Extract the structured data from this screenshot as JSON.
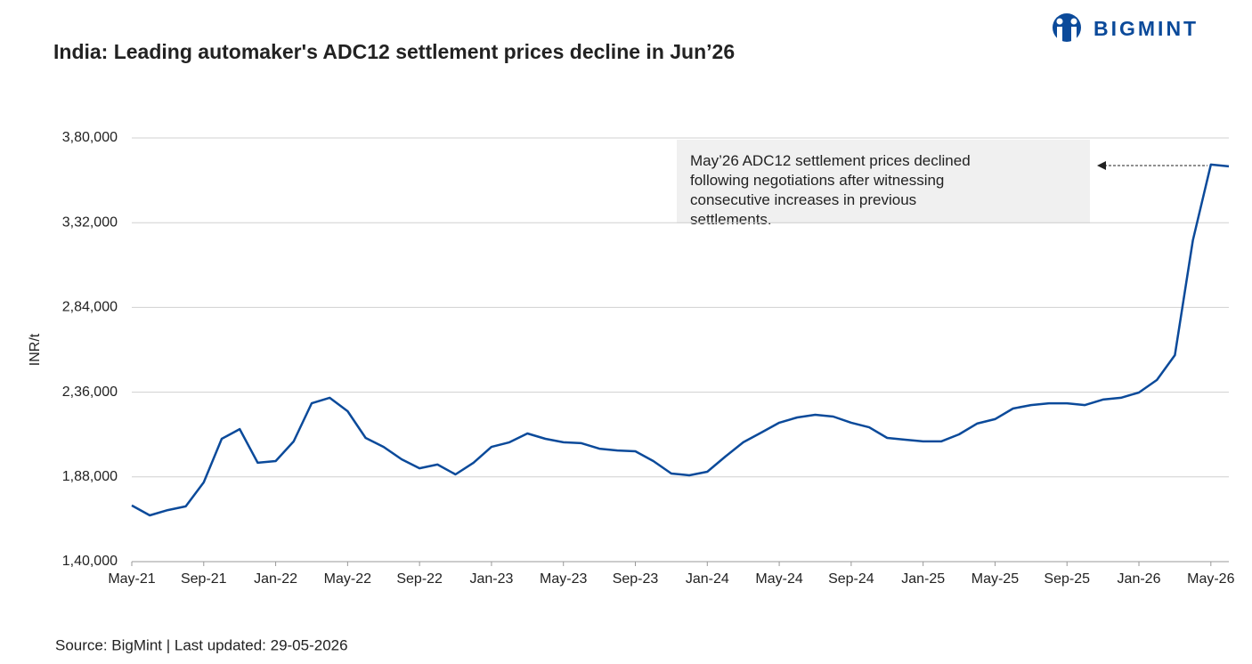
{
  "logo": "BIGMINT",
  "chart_data": {
    "type": "line",
    "title": "India: Leading automaker's ADC12 settlement prices decline in Jun’26",
    "y_label": "INR/t",
    "annotation": "May’26 ADC12 settlement prices declined following negotiations after witnessing consecutive increases in previous settlements.",
    "source": "Source: BigMint | Last updated: 29-05-2026",
    "categories": [
      "May-21",
      null,
      null,
      null,
      "Sep-21",
      null,
      null,
      null,
      "Jan-22",
      null,
      null,
      null,
      "May-22",
      null,
      null,
      null,
      "Sep-22",
      null,
      null,
      null,
      "Jan-23",
      null,
      null,
      null,
      "May-23",
      null,
      null,
      null,
      "Sep-23",
      null,
      null,
      null,
      "Jan-24",
      null,
      null,
      null,
      "May-24",
      null,
      null,
      null,
      "Sep-24",
      null,
      null,
      null,
      "Jan-25",
      null,
      null,
      null,
      "May-25",
      null,
      null,
      null,
      "Sep-25",
      null,
      null,
      null,
      "Jan-26",
      null,
      null,
      null,
      "May-26",
      null
    ],
    "series": [
      {
        "name": "ADC12 settlement price",
        "color": "#0b4a9a",
        "values": [
          171800,
          166200,
          169200,
          171300,
          184900,
          209600,
          215100,
          196000,
          197000,
          208100,
          229700,
          232800,
          225200,
          210100,
          205000,
          198000,
          192900,
          195000,
          189400,
          196000,
          205000,
          207600,
          212600,
          209600,
          207600,
          207100,
          204000,
          203000,
          202500,
          197000,
          189900,
          188900,
          190900,
          199500,
          207600,
          213100,
          218700,
          221700,
          223200,
          222200,
          218700,
          216100,
          210100,
          209100,
          208100,
          208100,
          212100,
          218200,
          220700,
          226700,
          228700,
          229700,
          229700,
          228700,
          231800,
          232800,
          235800,
          242900,
          257000,
          322000,
          364900,
          363900
        ]
      }
    ],
    "ylim": [
      140000,
      380000
    ],
    "yticks": [
      {
        "value": 140000,
        "label": "1,40,000"
      },
      {
        "value": 188000,
        "label": "1,88,000"
      },
      {
        "value": 236000,
        "label": "2,36,000"
      },
      {
        "value": 284000,
        "label": "2,84,000"
      },
      {
        "value": 332000,
        "label": "3,32,000"
      },
      {
        "value": 380000,
        "label": "3,80,000"
      }
    ],
    "grid": true
  }
}
